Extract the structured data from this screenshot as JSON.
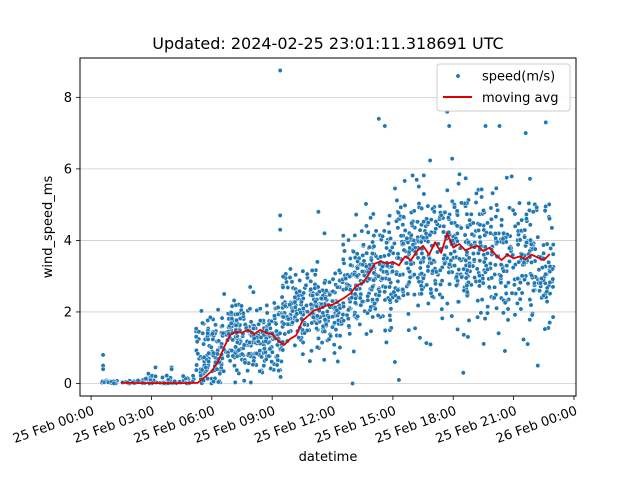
{
  "chart_data": {
    "type": "scatter",
    "title": "Updated: 2024-02-25 23:01:11.318691 UTC",
    "xlabel": "datetime",
    "ylabel": "wind_speed_ms",
    "x_unit": "hours of 25 Feb",
    "xlim": [
      -0.55,
      24.1
    ],
    "ylim": [
      -0.35,
      9.1
    ],
    "x_ticks": [
      {
        "value": 0,
        "label": "25 Feb 00:00"
      },
      {
        "value": 3,
        "label": "25 Feb 03:00"
      },
      {
        "value": 6,
        "label": "25 Feb 06:00"
      },
      {
        "value": 9,
        "label": "25 Feb 09:00"
      },
      {
        "value": 12,
        "label": "25 Feb 12:00"
      },
      {
        "value": 15,
        "label": "25 Feb 15:00"
      },
      {
        "value": 18,
        "label": "25 Feb 18:00"
      },
      {
        "value": 21,
        "label": "25 Feb 21:00"
      },
      {
        "value": 24,
        "label": "26 Feb 00:00"
      }
    ],
    "y_ticks": [
      {
        "value": 0,
        "label": "0"
      },
      {
        "value": 2,
        "label": "2"
      },
      {
        "value": 4,
        "label": "4"
      },
      {
        "value": 6,
        "label": "6"
      },
      {
        "value": 8,
        "label": "8"
      }
    ],
    "grid": "y",
    "legend_position": "top-right",
    "colors": {
      "scatter": "#1f77b4",
      "line": "#e00000"
    },
    "series": [
      {
        "name": "speed(m/s)",
        "kind": "scatter",
        "bands": [
          {
            "x": [
              0.5,
              2.2
            ],
            "mean": 0.02,
            "spread": 0.06,
            "count": 30
          },
          {
            "x": [
              2.2,
              5.2
            ],
            "mean": 0.05,
            "spread": 0.15,
            "count": 60
          },
          {
            "x": [
              5.2,
              6.5
            ],
            "mean": 0.8,
            "spread": 0.8,
            "count": 110
          },
          {
            "x": [
              6.5,
              9.5
            ],
            "mean": 1.3,
            "spread": 0.75,
            "count": 260
          },
          {
            "x": [
              9.5,
              12.5
            ],
            "mean": 2.1,
            "spread": 0.8,
            "count": 260
          },
          {
            "x": [
              12.5,
              15.0
            ],
            "mean": 2.9,
            "spread": 1.1,
            "count": 230
          },
          {
            "x": [
              15.0,
              20.0
            ],
            "mean": 3.7,
            "spread": 1.3,
            "count": 420
          },
          {
            "x": [
              20.0,
              23.0
            ],
            "mean": 3.4,
            "spread": 1.2,
            "count": 220
          }
        ],
        "outliers": [
          {
            "x": 0.6,
            "y": 0.8
          },
          {
            "x": 0.6,
            "y": 0.5
          },
          {
            "x": 0.6,
            "y": 0.4
          },
          {
            "x": 3.2,
            "y": 0.45
          },
          {
            "x": 3.2,
            "y": 0.2
          },
          {
            "x": 4.0,
            "y": 0.45
          },
          {
            "x": 4.0,
            "y": 0.4
          },
          {
            "x": 9.4,
            "y": 8.75
          },
          {
            "x": 9.4,
            "y": 4.7
          },
          {
            "x": 9.4,
            "y": 4.3
          },
          {
            "x": 11.3,
            "y": 4.8
          },
          {
            "x": 11.6,
            "y": 4.2
          },
          {
            "x": 14.3,
            "y": 7.4
          },
          {
            "x": 14.6,
            "y": 7.2
          },
          {
            "x": 15.3,
            "y": 0.1
          },
          {
            "x": 13.0,
            "y": 0.0
          },
          {
            "x": 17.7,
            "y": 7.6
          },
          {
            "x": 17.8,
            "y": 7.2
          },
          {
            "x": 19.6,
            "y": 7.2
          },
          {
            "x": 20.3,
            "y": 7.2
          },
          {
            "x": 21.6,
            "y": 7.0
          },
          {
            "x": 22.6,
            "y": 7.3
          },
          {
            "x": 22.2,
            "y": 0.5
          },
          {
            "x": 21.7,
            "y": 1.1
          },
          {
            "x": 18.5,
            "y": 0.3
          },
          {
            "x": 15.1,
            "y": 0.6
          }
        ]
      },
      {
        "name": "moving avg",
        "kind": "line",
        "x": [
          1.5,
          2.5,
          3.5,
          4.5,
          5.3,
          5.7,
          6.0,
          6.3,
          6.6,
          6.9,
          7.2,
          7.5,
          7.8,
          8.1,
          8.4,
          8.7,
          9.0,
          9.3,
          9.6,
          9.9,
          10.2,
          10.5,
          10.8,
          11.1,
          11.4,
          11.7,
          12.0,
          12.3,
          12.6,
          12.9,
          13.2,
          13.5,
          13.8,
          14.1,
          14.4,
          14.7,
          15.0,
          15.3,
          15.6,
          15.9,
          16.2,
          16.5,
          16.8,
          17.1,
          17.4,
          17.7,
          18.0,
          18.3,
          18.6,
          18.9,
          19.2,
          19.5,
          19.8,
          20.1,
          20.4,
          20.7,
          21.0,
          21.3,
          21.6,
          21.9,
          22.2,
          22.5,
          22.8
        ],
        "y": [
          0.02,
          0.01,
          0.01,
          0.01,
          0.02,
          0.2,
          0.35,
          0.6,
          1.0,
          1.35,
          1.45,
          1.42,
          1.5,
          1.38,
          1.5,
          1.42,
          1.38,
          1.2,
          1.08,
          1.25,
          1.35,
          1.75,
          1.9,
          2.05,
          2.1,
          2.18,
          2.2,
          2.3,
          2.4,
          2.52,
          2.75,
          2.8,
          3.05,
          3.35,
          3.42,
          3.35,
          3.4,
          3.3,
          3.55,
          3.45,
          3.7,
          3.85,
          3.6,
          3.95,
          3.65,
          4.2,
          3.8,
          3.9,
          3.72,
          3.8,
          3.85,
          3.7,
          3.8,
          3.6,
          3.45,
          3.6,
          3.5,
          3.55,
          3.48,
          3.6,
          3.52,
          3.45,
          3.62
        ]
      }
    ]
  }
}
